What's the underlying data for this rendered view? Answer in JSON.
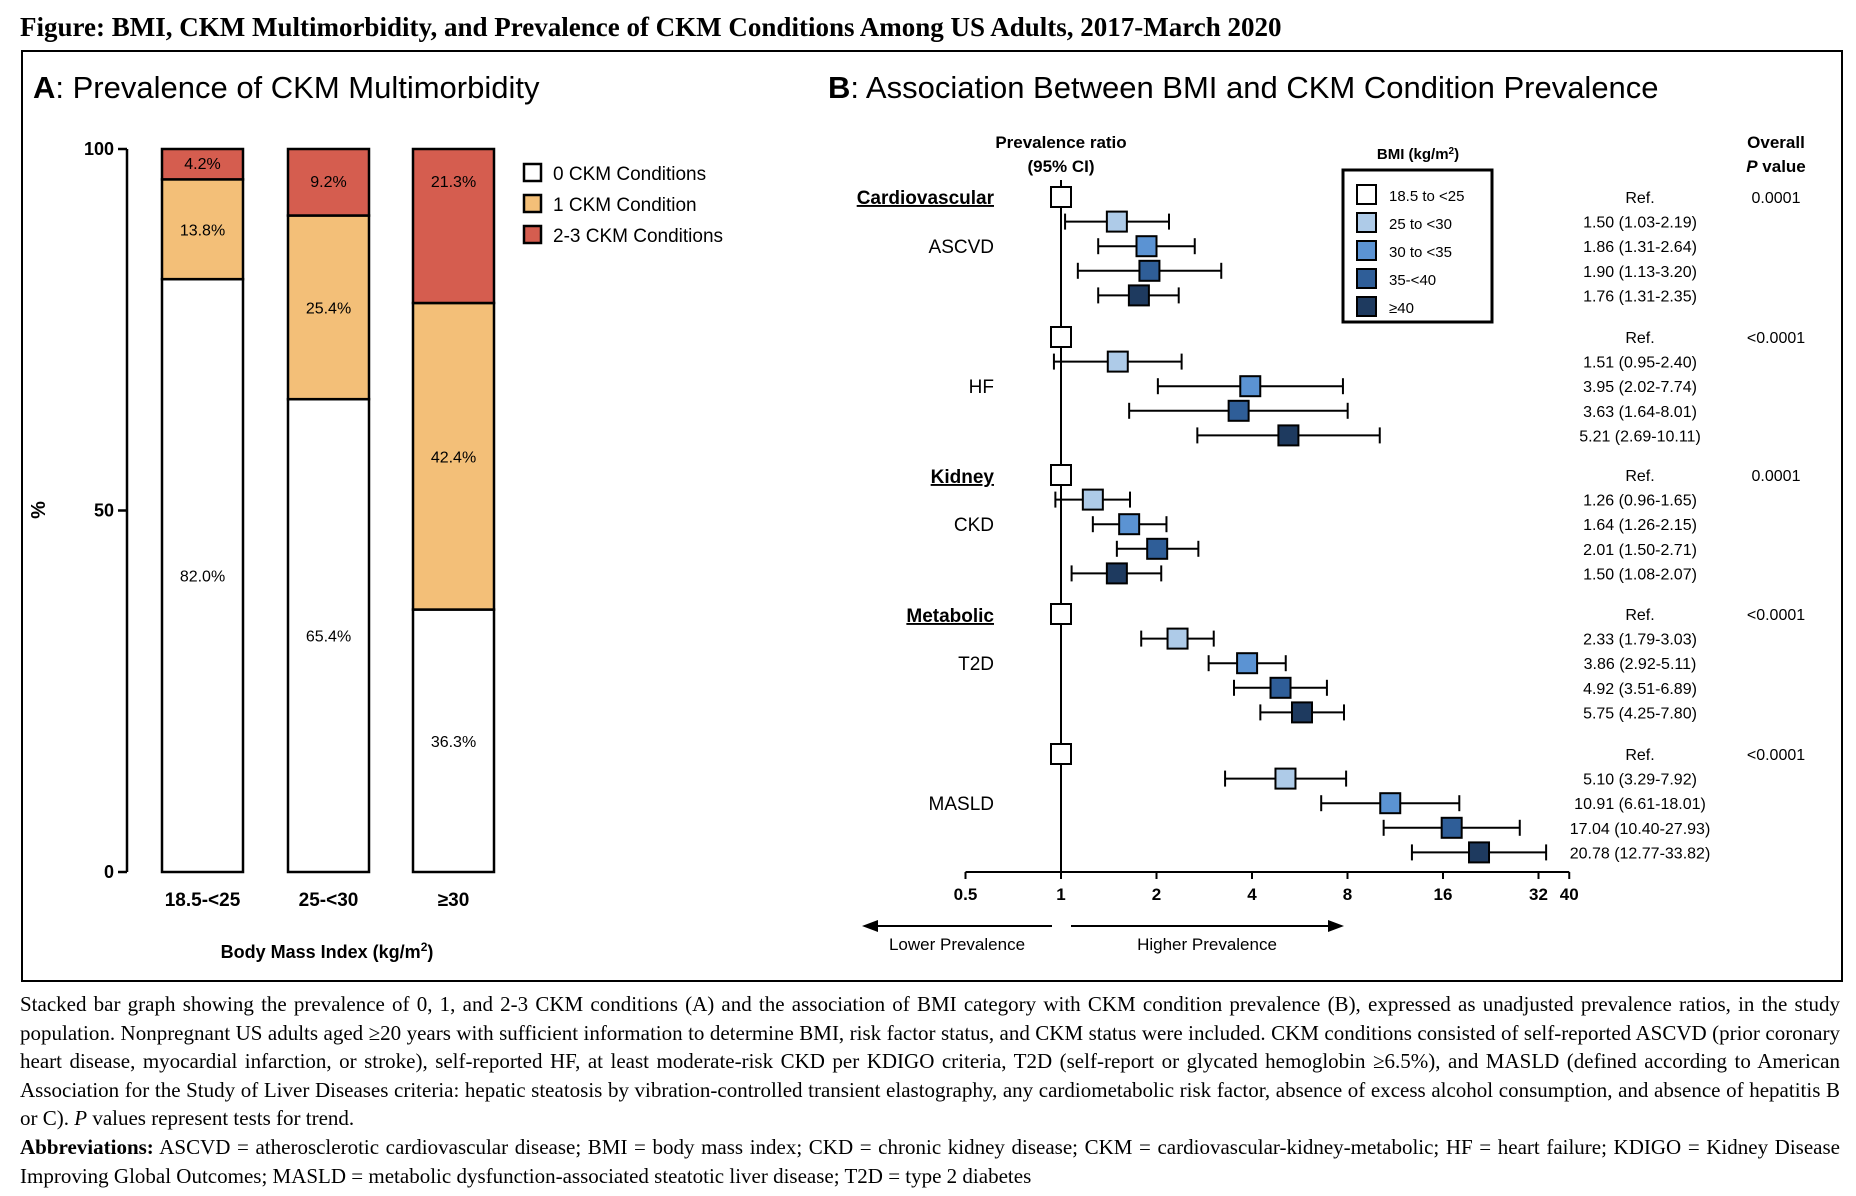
{
  "figure_title": "Figure: BMI, CKM Multimorbidity, and Prevalence of CKM Conditions Among US Adults, 2017-March 2020",
  "chart_data": [
    {
      "type": "bar",
      "stacked": true,
      "panel_letter": "A",
      "title": ": Prevalence of CKM Multimorbidity",
      "ylabel": "%",
      "xlabel": "Body Mass Index (kg/m",
      "xlabel_sup": "2",
      "xlabel_end": ")",
      "ylim": [
        0,
        100
      ],
      "yticks": [
        "0",
        "50",
        "100"
      ],
      "categories": [
        "18.5-<25",
        "25-<30",
        "≥30"
      ],
      "legend_position": "right",
      "series": [
        {
          "name": "0 CKM Conditions",
          "color": "#ffffff",
          "values": [
            82.0,
            65.4,
            36.3
          ],
          "labels": [
            "82.0%",
            "65.4%",
            "36.3%"
          ]
        },
        {
          "name": "1 CKM Condition",
          "color": "#f3bf78",
          "values": [
            13.8,
            25.4,
            42.4
          ],
          "labels": [
            "13.8%",
            "25.4%",
            "42.4%"
          ]
        },
        {
          "name": "2-3 CKM Conditions",
          "color": "#d55d4f",
          "values": [
            4.2,
            9.2,
            21.3
          ],
          "labels": [
            "4.2%",
            "9.2%",
            "21.3%"
          ]
        }
      ]
    },
    {
      "type": "scatter",
      "subtype": "forest",
      "panel_letter": "B",
      "title": ": Association Between BMI and CKM Condition Prevalence",
      "xscale": "log2",
      "xlim": [
        0.5,
        40
      ],
      "xticks": [
        "0.5",
        "1",
        "2",
        "4",
        "8",
        "16",
        "32",
        "40"
      ],
      "header_ratio": [
        "Prevalence ratio",
        "(95% CI)"
      ],
      "header_p": [
        "Overall",
        "P",
        " value"
      ],
      "direction_left": "Lower Prevalence",
      "direction_right": "Higher Prevalence",
      "legend_title": "BMI (kg/m",
      "legend_title_sup": "2",
      "legend_title_end": ")",
      "legend": [
        {
          "name": "18.5 to <25",
          "color": "#ffffff"
        },
        {
          "name": "25 to <30",
          "color": "#aecbe8"
        },
        {
          "name": "30 to <35",
          "color": "#5b93d3"
        },
        {
          "name": "35-<40",
          "color": "#2f5e98"
        },
        {
          "name": "≥40",
          "color": "#1e3a5f"
        }
      ],
      "groups": [
        {
          "category": "Cardiovascular",
          "condition": "ASCVD",
          "p_value": "0.0001",
          "rows": [
            {
              "label": "Ref.",
              "est": 1,
              "lo": null,
              "hi": null
            },
            {
              "label": "1.50 (1.03-2.19)",
              "est": 1.5,
              "lo": 1.03,
              "hi": 2.19
            },
            {
              "label": "1.86 (1.31-2.64)",
              "est": 1.86,
              "lo": 1.31,
              "hi": 2.64
            },
            {
              "label": "1.90 (1.13-3.20)",
              "est": 1.9,
              "lo": 1.13,
              "hi": 3.2
            },
            {
              "label": "1.76 (1.31-2.35)",
              "est": 1.76,
              "lo": 1.31,
              "hi": 2.35
            }
          ]
        },
        {
          "category": "",
          "condition": "HF",
          "p_value": "<0.0001",
          "rows": [
            {
              "label": "Ref.",
              "est": 1,
              "lo": null,
              "hi": null
            },
            {
              "label": "1.51 (0.95-2.40)",
              "est": 1.51,
              "lo": 0.95,
              "hi": 2.4
            },
            {
              "label": "3.95 (2.02-7.74)",
              "est": 3.95,
              "lo": 2.02,
              "hi": 7.74
            },
            {
              "label": "3.63 (1.64-8.01)",
              "est": 3.63,
              "lo": 1.64,
              "hi": 8.01
            },
            {
              "label": "5.21 (2.69-10.11)",
              "est": 5.21,
              "lo": 2.69,
              "hi": 10.11
            }
          ]
        },
        {
          "category": "Kidney",
          "condition": "CKD",
          "p_value": "0.0001",
          "rows": [
            {
              "label": "Ref.",
              "est": 1,
              "lo": null,
              "hi": null
            },
            {
              "label": "1.26 (0.96-1.65)",
              "est": 1.26,
              "lo": 0.96,
              "hi": 1.65
            },
            {
              "label": "1.64 (1.26-2.15)",
              "est": 1.64,
              "lo": 1.26,
              "hi": 2.15
            },
            {
              "label": "2.01 (1.50-2.71)",
              "est": 2.01,
              "lo": 1.5,
              "hi": 2.71
            },
            {
              "label": "1.50 (1.08-2.07)",
              "est": 1.5,
              "lo": 1.08,
              "hi": 2.07
            }
          ]
        },
        {
          "category": "Metabolic",
          "condition": "T2D",
          "p_value": "<0.0001",
          "rows": [
            {
              "label": "Ref.",
              "est": 1,
              "lo": null,
              "hi": null
            },
            {
              "label": "2.33 (1.79-3.03)",
              "est": 2.33,
              "lo": 1.79,
              "hi": 3.03
            },
            {
              "label": "3.86 (2.92-5.11)",
              "est": 3.86,
              "lo": 2.92,
              "hi": 5.11
            },
            {
              "label": "4.92 (3.51-6.89)",
              "est": 4.92,
              "lo": 3.51,
              "hi": 6.89
            },
            {
              "label": "5.75 (4.25-7.80)",
              "est": 5.75,
              "lo": 4.25,
              "hi": 7.8
            }
          ]
        },
        {
          "category": "",
          "condition": "MASLD",
          "p_value": "<0.0001",
          "rows": [
            {
              "label": "Ref.",
              "est": 1,
              "lo": null,
              "hi": null
            },
            {
              "label": "5.10 (3.29-7.92)",
              "est": 5.1,
              "lo": 3.29,
              "hi": 7.92
            },
            {
              "label": "10.91 (6.61-18.01)",
              "est": 10.91,
              "lo": 6.61,
              "hi": 18.01
            },
            {
              "label": "17.04 (10.40-27.93)",
              "est": 17.04,
              "lo": 10.4,
              "hi": 27.93
            },
            {
              "label": "20.78 (12.77-33.82)",
              "est": 20.78,
              "lo": 12.77,
              "hi": 33.82
            }
          ]
        }
      ]
    }
  ],
  "caption": {
    "text_1": "Stacked bar graph showing the prevalence of 0, 1, and 2-3 CKM conditions (A) and the association of BMI category with CKM condition prevalence (B), expressed as unadjusted prevalence ratios, in the study population. Nonpregnant US adults aged ≥20 years with sufficient information to determine BMI, risk factor status, and CKM status were included. CKM conditions consisted of self-reported ASCVD (prior coronary heart disease, myocardial infarction, or stroke), self-reported HF, at least moderate-risk CKD per KDIGO criteria, T2D (self-report or glycated hemoglobin ≥6.5%), and MASLD (defined according to American Association for the Study of Liver Diseases criteria: hepatic steatosis by vibration-controlled transient elastography, any cardiometabolic risk factor, absence of excess alcohol consumption, and absence of hepatitis B or C). ",
    "p_italic": "P",
    "text_2": " values represent tests for trend.",
    "abbrev_label": "Abbreviations:",
    "abbrev_text": " ASCVD = atherosclerotic cardiovascular disease; BMI = body mass index; CKD = chronic kidney disease; CKM = cardiovascular-kidney-metabolic; HF = heart failure; KDIGO = Kidney Disease Improving Global Outcomes; MASLD = metabolic dysfunction-associated steatotic liver disease; T2D = type 2 diabetes"
  }
}
